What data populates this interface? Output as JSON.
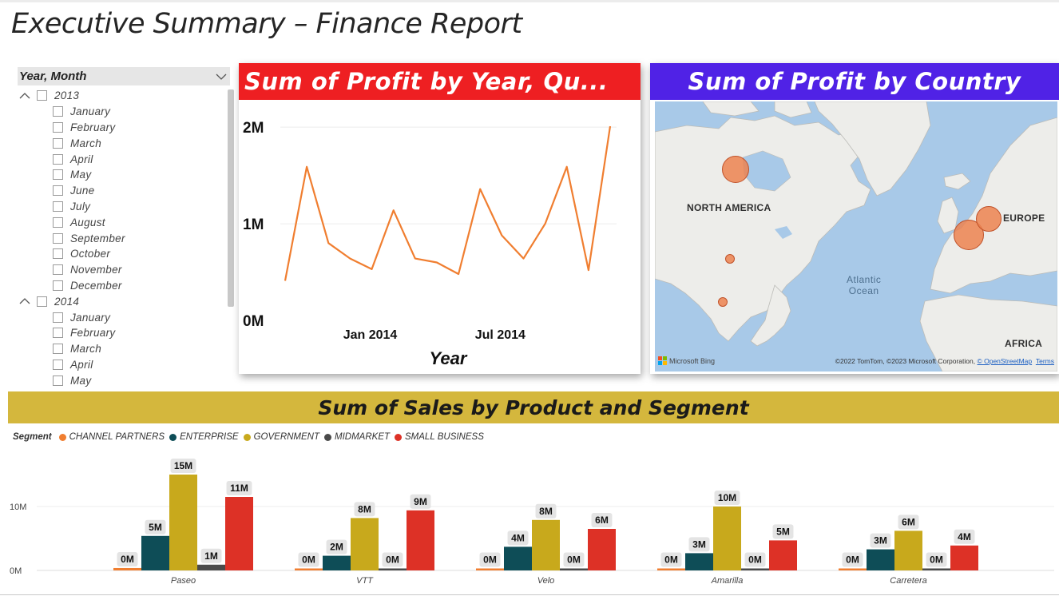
{
  "page": {
    "title": "Executive Summary – Finance Report"
  },
  "slicer": {
    "header": "Year, Month",
    "rows": [
      {
        "type": "year",
        "label": "2013"
      },
      {
        "type": "month",
        "label": "January"
      },
      {
        "type": "month",
        "label": "February"
      },
      {
        "type": "month",
        "label": "March"
      },
      {
        "type": "month",
        "label": "April"
      },
      {
        "type": "month",
        "label": "May"
      },
      {
        "type": "month",
        "label": "June"
      },
      {
        "type": "month",
        "label": "July"
      },
      {
        "type": "month",
        "label": "August"
      },
      {
        "type": "month",
        "label": "September"
      },
      {
        "type": "month",
        "label": "October"
      },
      {
        "type": "month",
        "label": "November"
      },
      {
        "type": "month",
        "label": "December"
      },
      {
        "type": "year",
        "label": "2014"
      },
      {
        "type": "month",
        "label": "January"
      },
      {
        "type": "month",
        "label": "February"
      },
      {
        "type": "month",
        "label": "March"
      },
      {
        "type": "month",
        "label": "April"
      },
      {
        "type": "month",
        "label": "May"
      }
    ]
  },
  "map": {
    "title": "Sum of Profit by Country",
    "labels": {
      "north_america": "NORTH AMERICA",
      "europe": "EUROPE",
      "africa": "AFRICA",
      "ocean_line1": "Atlantic",
      "ocean_line2": "Ocean"
    },
    "bing": "Microsoft Bing",
    "attribution": "©2022 TomTom, ©2023 Microsoft Corporation,",
    "attribution_link": "© OpenStreetMap",
    "terms": "Terms",
    "colors": {
      "water": "#a8c9e8",
      "land": "#ededea",
      "bubble": "#ec8250"
    }
  },
  "chart_data": [
    {
      "type": "line",
      "title": "Sum of Profit by Year, Qu...",
      "xlabel": "Year",
      "ylabel": "",
      "x_ticks": [
        "Jan 2014",
        "Jul 2014"
      ],
      "y_ticks": [
        "0M",
        "1M",
        "2M"
      ],
      "ylim": [
        0,
        2200000
      ],
      "grid": true,
      "color": "#f07e30",
      "series": [
        {
          "values": [
            410000,
            1590000,
            800000,
            640000,
            530000,
            1140000,
            640000,
            600000,
            480000,
            1360000,
            880000,
            640000,
            1000000,
            1590000,
            520000,
            2010000
          ]
        }
      ]
    },
    {
      "type": "bar",
      "title": "Sum of  Sales by Product and Segment",
      "legend_title": "Segment",
      "legend_position": "top-left",
      "categories": [
        "Paseo",
        "VTT",
        "Velo",
        "Amarilla",
        "Carretera"
      ],
      "ylim": [
        0,
        15500000
      ],
      "y_ticks": [
        "0M",
        "10M"
      ],
      "series": [
        {
          "name": "CHANNEL PARTNERS",
          "color": "#f07e30",
          "values": [
            380000,
            170000,
            170000,
            170000,
            170000
          ],
          "labels": [
            "0M",
            "0M",
            "0M",
            "0M",
            "0M"
          ]
        },
        {
          "name": "ENTERPRISE",
          "color": "#0e4d57",
          "values": [
            5400000,
            2300000,
            3700000,
            2700000,
            3300000
          ],
          "labels": [
            "5M",
            "2M",
            "4M",
            "3M",
            "3M"
          ]
        },
        {
          "name": "GOVERNMENT",
          "color": "#c8a91c",
          "values": [
            15000000,
            8200000,
            7900000,
            10000000,
            6200000
          ],
          "labels": [
            "15M",
            "8M",
            "8M",
            "10M",
            "6M"
          ]
        },
        {
          "name": "MIDMARKET",
          "color": "#4a4a4a",
          "values": [
            900000,
            180000,
            180000,
            180000,
            180000
          ],
          "labels": [
            "1M",
            "0M",
            "0M",
            "0M",
            "0M"
          ]
        },
        {
          "name": "SMALL BUSINESS",
          "color": "#dd3126",
          "values": [
            11500000,
            9400000,
            6500000,
            4700000,
            3900000
          ],
          "labels": [
            "11M",
            "9M",
            "6M",
            "5M",
            "4M"
          ]
        }
      ]
    }
  ]
}
